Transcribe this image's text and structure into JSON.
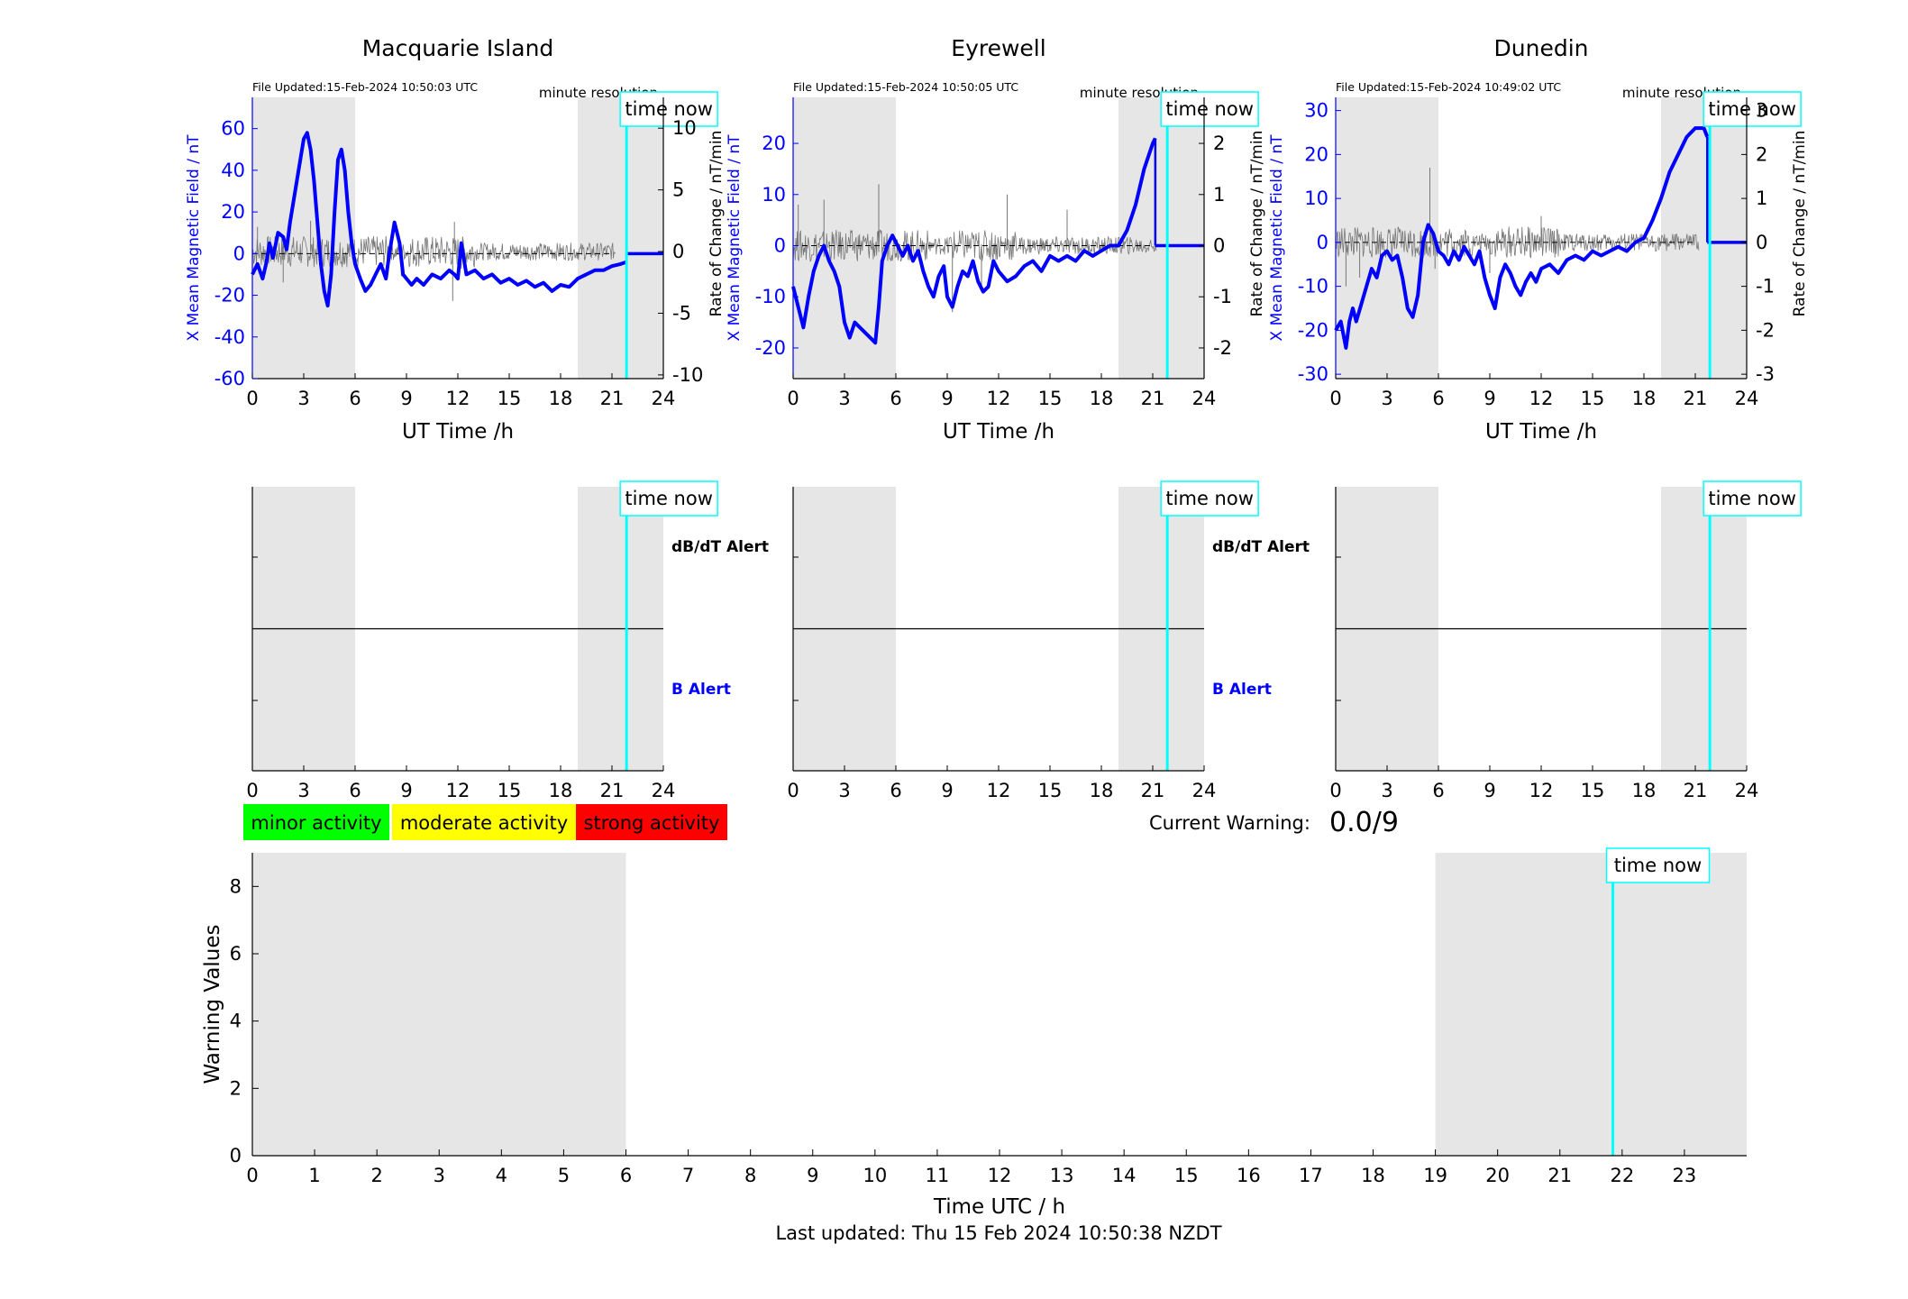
{
  "footer": {
    "last_updated": "Last updated: Thu 15 Feb 2024 10:50:38 NZDT"
  },
  "legend": {
    "minor": "minor activity",
    "moderate": "moderate activity",
    "strong": "strong activity",
    "minor_color": "#00ff00",
    "moderate_color": "#ffff00",
    "strong_color": "#ff0000"
  },
  "current_warning": {
    "label": "Current Warning:",
    "value": "0.0/9"
  },
  "colors": {
    "field": "#0000ff",
    "rate": "#777777",
    "now_line": "#00ffff",
    "shade": "#e6e6e6"
  },
  "chart_data": [
    {
      "type": "line",
      "title": "Macquarie Island",
      "file_updated": "File Updated:15-Feb-2024 10:50:03 UTC",
      "resolution": "minute resolution",
      "now_label": "time now",
      "now_hour": 21.85,
      "xlabel": "UT Time /h",
      "ylabel_left": "X Mean Magnetic Field / nT",
      "ylabel_right": "Rate of Change / nT/min",
      "xlim": [
        0,
        24
      ],
      "ylim_left": [
        -60,
        75
      ],
      "ylim_right": [
        -10.3,
        12.5
      ],
      "xticks": [
        0,
        3,
        6,
        9,
        12,
        15,
        18,
        21,
        24
      ],
      "yticks_left": [
        -60,
        -40,
        -20,
        0,
        20,
        40,
        60
      ],
      "yticks_right": [
        -10,
        -5,
        0,
        5,
        10
      ],
      "shaded_hours": [
        [
          0,
          6
        ],
        [
          19,
          24
        ]
      ],
      "field_series": {
        "x": [
          0,
          0.3,
          0.6,
          0.8,
          1.0,
          1.2,
          1.5,
          1.8,
          2.0,
          2.2,
          2.5,
          2.8,
          3.0,
          3.2,
          3.4,
          3.6,
          3.8,
          4.0,
          4.2,
          4.4,
          4.6,
          4.8,
          5.0,
          5.2,
          5.4,
          5.6,
          5.8,
          6.0,
          6.3,
          6.6,
          6.9,
          7.2,
          7.5,
          7.8,
          8.0,
          8.3,
          8.6,
          8.8,
          9.0,
          9.3,
          9.6,
          10.0,
          10.5,
          11.0,
          11.5,
          11.8,
          12.0,
          12.2,
          12.5,
          13.0,
          13.5,
          14.0,
          14.5,
          15.0,
          15.5,
          16.0,
          16.5,
          17.0,
          17.5,
          18.0,
          18.5,
          19.0,
          19.5,
          20.0,
          20.5,
          21.0,
          21.5,
          21.85
        ],
        "y": [
          -10,
          -5,
          -12,
          -5,
          5,
          -2,
          10,
          8,
          2,
          15,
          30,
          45,
          55,
          58,
          50,
          35,
          15,
          -5,
          -18,
          -25,
          -10,
          20,
          45,
          50,
          40,
          20,
          5,
          -5,
          -12,
          -18,
          -15,
          -10,
          -5,
          -12,
          0,
          15,
          5,
          -10,
          -12,
          -15,
          -12,
          -15,
          -10,
          -12,
          -8,
          -10,
          -12,
          5,
          -10,
          -8,
          -12,
          -10,
          -14,
          -12,
          -15,
          -13,
          -16,
          -14,
          -18,
          -15,
          -16,
          -12,
          -10,
          -8,
          -8,
          -6,
          -5,
          -4
        ]
      },
      "rate_spikes": [
        [
          0.3,
          2
        ],
        [
          1.8,
          -2.5
        ],
        [
          3.4,
          2.5
        ],
        [
          4.6,
          -3
        ],
        [
          8.7,
          -2
        ],
        [
          11.7,
          -4
        ],
        [
          11.8,
          2.4
        ],
        [
          12.2,
          -1.4
        ]
      ]
    },
    {
      "type": "line",
      "title": "Eyrewell",
      "file_updated": "File Updated:15-Feb-2024 10:50:05 UTC",
      "resolution": "minute resolution",
      "now_label": "time now",
      "now_hour": 21.85,
      "xlabel": "UT Time /h",
      "ylabel_left": "X Mean Magnetic Field / nT",
      "ylabel_right": "Rate of Change / nT/min",
      "xlim": [
        0,
        24
      ],
      "ylim_left": [
        -26,
        29
      ],
      "ylim_right": [
        -2.6,
        2.9
      ],
      "xticks": [
        0,
        3,
        6,
        9,
        12,
        15,
        18,
        21,
        24
      ],
      "yticks_left": [
        -20,
        -10,
        0,
        10,
        20
      ],
      "yticks_right": [
        -2,
        -1,
        0,
        1,
        2
      ],
      "shaded_hours": [
        [
          0,
          6
        ],
        [
          19,
          24
        ]
      ],
      "field_series": {
        "x": [
          0,
          0.3,
          0.6,
          0.9,
          1.2,
          1.5,
          1.8,
          2.1,
          2.4,
          2.7,
          3.0,
          3.3,
          3.6,
          3.9,
          4.2,
          4.5,
          4.8,
          5.0,
          5.2,
          5.5,
          5.8,
          6.1,
          6.4,
          6.7,
          7.0,
          7.3,
          7.6,
          7.9,
          8.2,
          8.5,
          8.8,
          9.0,
          9.3,
          9.6,
          9.9,
          10.2,
          10.5,
          10.8,
          11.1,
          11.4,
          11.7,
          12.0,
          12.5,
          13.0,
          13.5,
          14.0,
          14.5,
          15.0,
          15.5,
          16.0,
          16.5,
          17.0,
          17.5,
          18.0,
          18.5,
          19.0,
          19.5,
          20.0,
          20.5,
          21.0,
          21.15
        ],
        "y": [
          -8,
          -12,
          -16,
          -10,
          -5,
          -2,
          0,
          -3,
          -5,
          -8,
          -15,
          -18,
          -15,
          -16,
          -17,
          -18,
          -19,
          -12,
          -3,
          0,
          2,
          0,
          -2,
          0,
          -3,
          -1,
          -5,
          -8,
          -10,
          -6,
          -4,
          -10,
          -12,
          -8,
          -5,
          -6,
          -3,
          -7,
          -9,
          -8,
          -3,
          -5,
          -7,
          -6,
          -4,
          -3,
          -5,
          -2,
          -3,
          -2,
          -3,
          -1,
          -2,
          -1,
          0,
          0,
          3,
          8,
          15,
          20,
          21
        ]
      },
      "rate_spikes": [
        [
          0.3,
          0.8
        ],
        [
          1.8,
          0.9
        ],
        [
          5.0,
          1.2
        ],
        [
          9.3,
          -1.3
        ],
        [
          11.0,
          -0.8
        ],
        [
          12.5,
          1.0
        ],
        [
          16.0,
          0.7
        ]
      ]
    },
    {
      "type": "line",
      "title": "Dunedin",
      "file_updated": "File Updated:15-Feb-2024 10:49:02 UTC",
      "resolution": "minute resolution",
      "now_label": "time now",
      "now_hour": 21.85,
      "xlabel": "UT Time /h",
      "ylabel_left": "X Mean Magnetic Field / nT",
      "ylabel_right": "Rate of Change / nT/min",
      "xlim": [
        0,
        24
      ],
      "ylim_left": [
        -31,
        33
      ],
      "ylim_right": [
        -3.1,
        3.3
      ],
      "xticks": [
        0,
        3,
        6,
        9,
        12,
        15,
        18,
        21,
        24
      ],
      "yticks_left": [
        -30,
        -20,
        -10,
        0,
        10,
        20,
        30
      ],
      "yticks_right": [
        -3,
        -2,
        -1,
        0,
        1,
        2,
        3
      ],
      "shaded_hours": [
        [
          0,
          6
        ],
        [
          19,
          24
        ]
      ],
      "field_series": {
        "x": [
          0,
          0.3,
          0.6,
          0.8,
          1.0,
          1.2,
          1.5,
          1.8,
          2.1,
          2.4,
          2.7,
          3.0,
          3.3,
          3.6,
          3.9,
          4.2,
          4.5,
          4.8,
          5.1,
          5.4,
          5.7,
          6.0,
          6.3,
          6.6,
          6.9,
          7.2,
          7.5,
          7.8,
          8.1,
          8.4,
          8.7,
          9.0,
          9.3,
          9.6,
          9.9,
          10.2,
          10.5,
          10.8,
          11.1,
          11.4,
          11.7,
          12.0,
          12.5,
          13.0,
          13.5,
          14.0,
          14.5,
          15.0,
          15.5,
          16.0,
          16.5,
          17.0,
          17.5,
          18.0,
          18.5,
          19.0,
          19.5,
          20.0,
          20.5,
          21.0,
          21.5,
          21.7
        ],
        "y": [
          -20,
          -18,
          -24,
          -18,
          -15,
          -18,
          -14,
          -10,
          -6,
          -8,
          -3,
          -2,
          -4,
          -3,
          -8,
          -15,
          -17,
          -12,
          0,
          4,
          2,
          -2,
          -3,
          -5,
          -2,
          -4,
          -1,
          -3,
          -5,
          -2,
          -8,
          -12,
          -15,
          -8,
          -5,
          -7,
          -10,
          -12,
          -9,
          -7,
          -9,
          -6,
          -5,
          -7,
          -4,
          -3,
          -4,
          -2,
          -3,
          -2,
          -1,
          -2,
          0,
          1,
          5,
          10,
          16,
          20,
          24,
          26,
          26,
          24
        ]
      },
      "rate_spikes": [
        [
          0.6,
          -1.0
        ],
        [
          1.4,
          -0.8
        ],
        [
          5.5,
          1.7
        ],
        [
          5.8,
          -0.6
        ],
        [
          9.0,
          -0.7
        ],
        [
          12.0,
          0.6
        ]
      ]
    },
    {
      "type": "table",
      "panel": "Macquarie Island alerts",
      "now_label": "time now",
      "now_hour": 21.85,
      "xlim": [
        0,
        24
      ],
      "xticks": [
        0,
        3,
        6,
        9,
        12,
        15,
        18,
        21,
        24
      ],
      "shaded_hours": [
        [
          0,
          6
        ],
        [
          19,
          24
        ]
      ],
      "rows": [
        "dB/dT Alert",
        "B Alert"
      ]
    },
    {
      "type": "table",
      "panel": "Eyrewell alerts",
      "now_label": "time now",
      "now_hour": 21.85,
      "xlim": [
        0,
        24
      ],
      "xticks": [
        0,
        3,
        6,
        9,
        12,
        15,
        18,
        21,
        24
      ],
      "shaded_hours": [
        [
          0,
          6
        ],
        [
          19,
          24
        ]
      ],
      "rows": [
        "dB/dT Alert",
        "B Alert"
      ]
    },
    {
      "type": "table",
      "panel": "Dunedin alerts",
      "now_label": "time now",
      "now_hour": 21.85,
      "xlim": [
        0,
        24
      ],
      "xticks": [
        0,
        3,
        6,
        9,
        12,
        15,
        18,
        21,
        24
      ],
      "shaded_hours": [
        [
          0,
          6
        ],
        [
          19,
          24
        ]
      ],
      "rows": []
    },
    {
      "type": "bar",
      "xlabel": "Time UTC / h",
      "ylabel": "Warning Values",
      "xlim": [
        0,
        24
      ],
      "ylim": [
        0,
        9
      ],
      "xticks": [
        0,
        1,
        2,
        3,
        4,
        5,
        6,
        7,
        8,
        9,
        10,
        11,
        12,
        13,
        14,
        15,
        16,
        17,
        18,
        19,
        20,
        21,
        22,
        23
      ],
      "yticks": [
        0,
        2,
        4,
        6,
        8
      ],
      "shaded_hours": [
        [
          0,
          6
        ],
        [
          19,
          24
        ]
      ],
      "now_label": "time now",
      "now_hour": 21.85,
      "values": []
    }
  ]
}
